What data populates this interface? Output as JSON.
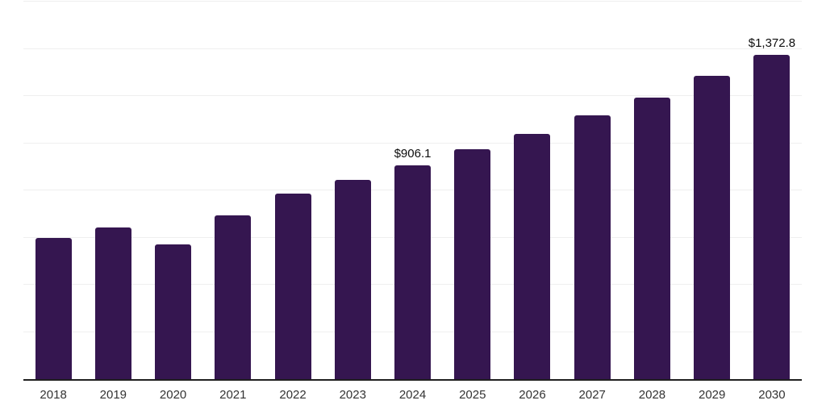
{
  "chart_data": {
    "type": "bar",
    "title": "",
    "xlabel": "",
    "ylabel": "",
    "categories": [
      "2018",
      "2019",
      "2020",
      "2021",
      "2022",
      "2023",
      "2024",
      "2025",
      "2026",
      "2027",
      "2028",
      "2029",
      "2030"
    ],
    "values": [
      598,
      643,
      571,
      694,
      788,
      845,
      906.1,
      973,
      1040,
      1117,
      1193,
      1284,
      1372.8
    ],
    "value_labels": [
      {
        "category": "2024",
        "text": "$906.1"
      },
      {
        "category": "2030",
        "text": "$1,372.8"
      }
    ],
    "ylim": [
      0,
      1600
    ],
    "grid_step": 200,
    "grid": "horizontal-only",
    "legend_position": "none",
    "colors": {
      "bar": "#351650",
      "gridline": "#efefef",
      "axis_line": "#1f1f1f",
      "tick_label": "#333333",
      "value_label": "#0d0d0d",
      "background": "#ffffff"
    }
  }
}
